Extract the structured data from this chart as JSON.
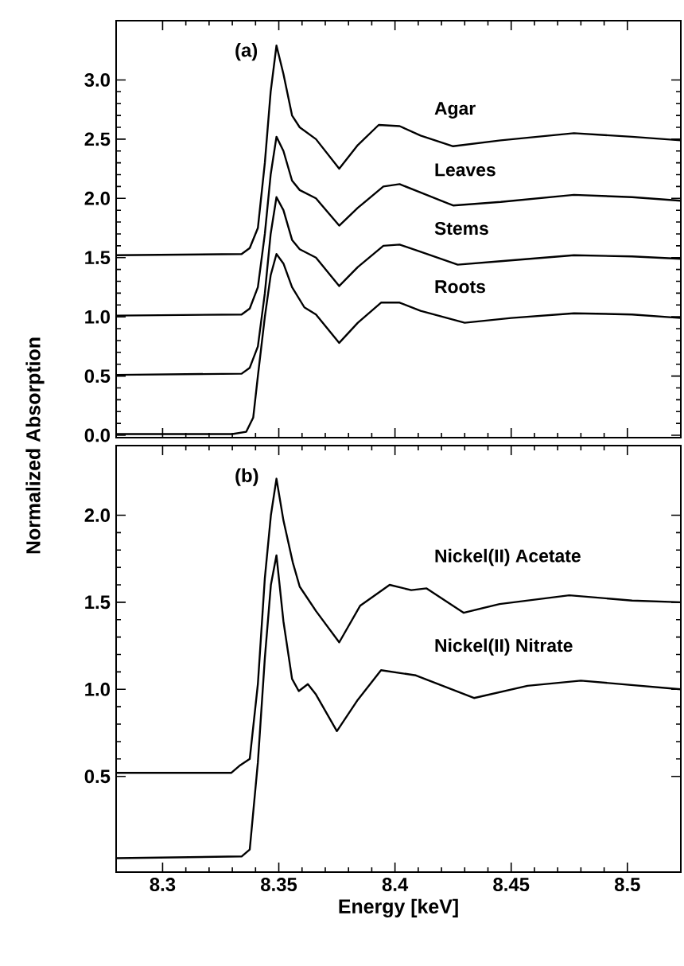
{
  "chart_data": [
    {
      "type": "line",
      "ylabel": "Normalized Absorption",
      "annotations": [
        "(a)"
      ],
      "xlim": [
        8.28,
        8.523
      ],
      "xticks": [
        8.3,
        8.35,
        8.4,
        8.45,
        8.5
      ],
      "ylim": [
        -0.02,
        3.5
      ],
      "yticks": [
        {
          "value": 0,
          "label": "0.0"
        },
        0.5,
        {
          "value": 1,
          "label": "1.0"
        },
        1.5,
        {
          "value": 2,
          "label": "2.0"
        },
        2.5,
        {
          "value": 3,
          "label": "3.0"
        }
      ],
      "tick_labels": "y",
      "series": [
        {
          "name": "Agar",
          "color": "#000000",
          "x": [
            8.28,
            8.334,
            8.3375,
            8.341,
            8.344,
            8.3465,
            8.349,
            8.352,
            8.3557,
            8.359,
            8.366,
            8.376,
            8.384,
            8.393,
            8.402,
            8.411,
            8.425,
            8.4455,
            8.477,
            8.502,
            8.523
          ],
          "values": [
            1.52,
            1.53,
            1.58,
            1.75,
            2.3,
            2.9,
            3.29,
            3.05,
            2.7,
            2.6,
            2.5,
            2.25,
            2.45,
            2.62,
            2.61,
            2.53,
            2.44,
            2.49,
            2.55,
            2.52,
            2.49
          ]
        },
        {
          "name": "Leaves",
          "color": "#000000",
          "x": [
            8.28,
            8.334,
            8.3375,
            8.341,
            8.344,
            8.3465,
            8.349,
            8.352,
            8.3557,
            8.359,
            8.366,
            8.376,
            8.384,
            8.395,
            8.402,
            8.411,
            8.425,
            8.4455,
            8.477,
            8.502,
            8.523
          ],
          "values": [
            1.01,
            1.02,
            1.07,
            1.25,
            1.7,
            2.2,
            2.52,
            2.4,
            2.15,
            2.07,
            2.0,
            1.77,
            1.92,
            2.1,
            2.12,
            2.05,
            1.94,
            1.97,
            2.03,
            2.01,
            1.98
          ]
        },
        {
          "name": "Stems",
          "color": "#000000",
          "x": [
            8.28,
            8.334,
            8.3375,
            8.341,
            8.344,
            8.3465,
            8.349,
            8.352,
            8.3557,
            8.359,
            8.366,
            8.376,
            8.384,
            8.395,
            8.402,
            8.411,
            8.427,
            8.4455,
            8.477,
            8.502,
            8.523
          ],
          "values": [
            0.51,
            0.52,
            0.57,
            0.75,
            1.2,
            1.7,
            2.01,
            1.9,
            1.65,
            1.57,
            1.5,
            1.26,
            1.42,
            1.6,
            1.61,
            1.55,
            1.44,
            1.47,
            1.52,
            1.51,
            1.49
          ]
        },
        {
          "name": "Roots",
          "color": "#000000",
          "x": [
            8.28,
            8.33,
            8.336,
            8.339,
            8.341,
            8.344,
            8.3465,
            8.349,
            8.352,
            8.3557,
            8.361,
            8.366,
            8.376,
            8.384,
            8.394,
            8.402,
            8.411,
            8.43,
            8.45,
            8.477,
            8.502,
            8.523
          ],
          "values": [
            0.01,
            0.01,
            0.03,
            0.15,
            0.5,
            1.0,
            1.35,
            1.53,
            1.45,
            1.25,
            1.08,
            1.02,
            0.78,
            0.95,
            1.12,
            1.12,
            1.05,
            0.95,
            0.99,
            1.03,
            1.02,
            0.99
          ]
        }
      ]
    },
    {
      "type": "line",
      "xlabel": "Energy [keV]",
      "annotations": [
        "(b)"
      ],
      "xlim": [
        8.28,
        8.523
      ],
      "xticks": [
        8.3,
        8.35,
        8.4,
        8.45,
        8.5
      ],
      "ylim": [
        -0.05,
        2.4
      ],
      "yticks": [
        0.5,
        {
          "value": 1,
          "label": "1.0"
        },
        1.5,
        {
          "value": 2,
          "label": "2.0"
        }
      ],
      "series": [
        {
          "name": "Nickel(II) Acetate",
          "color": "#000000",
          "x": [
            8.28,
            8.3295,
            8.333,
            8.3375,
            8.341,
            8.344,
            8.3466,
            8.349,
            8.352,
            8.356,
            8.359,
            8.366,
            8.376,
            8.385,
            8.3977,
            8.407,
            8.4136,
            8.4295,
            8.445,
            8.475,
            8.502,
            8.523
          ],
          "values": [
            0.52,
            0.52,
            0.56,
            0.6,
            1.03,
            1.64,
            2.0,
            2.21,
            1.97,
            1.73,
            1.59,
            1.45,
            1.27,
            1.48,
            1.6,
            1.57,
            1.58,
            1.44,
            1.49,
            1.54,
            1.51,
            1.5
          ]
        },
        {
          "name": "Nickel(II) Nitrate",
          "color": "#000000",
          "x": [
            8.28,
            8.334,
            8.3375,
            8.341,
            8.344,
            8.3466,
            8.349,
            8.352,
            8.3557,
            8.3586,
            8.3625,
            8.366,
            8.375,
            8.384,
            8.394,
            8.409,
            8.434,
            8.457,
            8.48,
            8.523
          ],
          "values": [
            0.03,
            0.04,
            0.08,
            0.58,
            1.18,
            1.6,
            1.77,
            1.39,
            1.06,
            0.99,
            1.03,
            0.97,
            0.76,
            0.94,
            1.11,
            1.08,
            0.95,
            1.02,
            1.05,
            1.0
          ]
        }
      ]
    }
  ]
}
